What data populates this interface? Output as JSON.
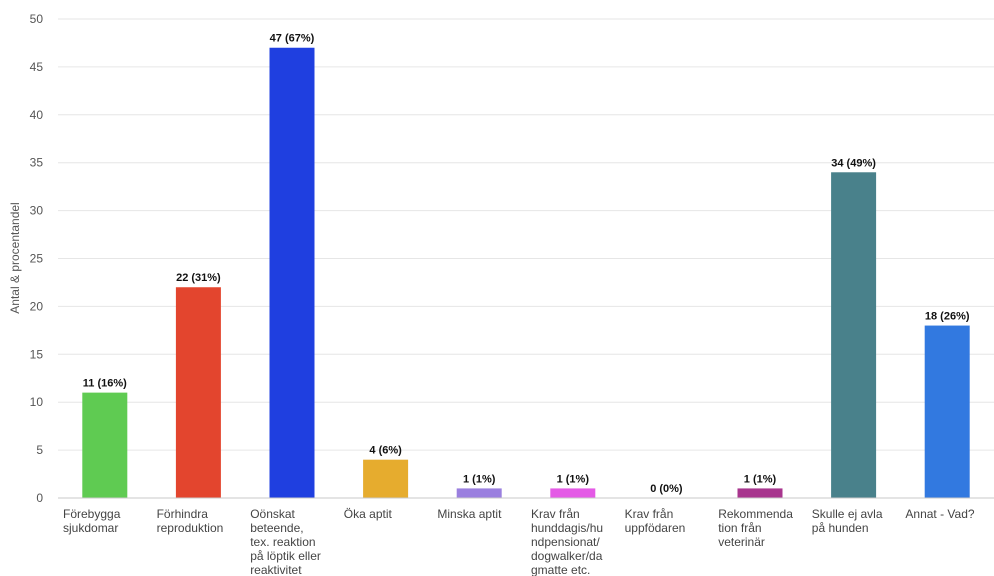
{
  "chart_data": {
    "type": "bar",
    "title": "",
    "xlabel": "",
    "ylabel": "Antal & procentandel",
    "ylim": [
      0,
      50
    ],
    "yticks": [
      0,
      5,
      10,
      15,
      20,
      25,
      30,
      35,
      40,
      45,
      50
    ],
    "grid": true,
    "categories": [
      [
        "Förebygga",
        "sjukdomar"
      ],
      [
        "Förhindra",
        "reproduktion"
      ],
      [
        "Oönskat",
        "beteende,",
        "tex. reaktion",
        "på löptik eller",
        "reaktivitet"
      ],
      [
        "Öka aptit"
      ],
      [
        "Minska aptit"
      ],
      [
        "Krav från",
        "hunddagis/hu",
        "ndpensionat/",
        "dogwalker/da",
        "gmatte etc."
      ],
      [
        "Krav från",
        "uppfödaren"
      ],
      [
        "Rekommenda",
        "tion från",
        "veterinär"
      ],
      [
        "Skulle ej avla",
        "på hunden"
      ],
      [
        "Annat - Vad?"
      ]
    ],
    "values": [
      11,
      22,
      47,
      4,
      1,
      1,
      0,
      1,
      34,
      18
    ],
    "data_labels": [
      "11 (16%)",
      "22 (31%)",
      "47 (67%)",
      "4 (6%)",
      "1 (1%)",
      "1 (1%)",
      "0 (0%)",
      "1 (1%)",
      "34 (49%)",
      "18 (26%)"
    ],
    "colors": [
      "#5fcb52",
      "#e3452e",
      "#1f3fe0",
      "#e6ac2e",
      "#9a7fdf",
      "#e45ae6",
      "#888888",
      "#a8358e",
      "#49818b",
      "#3279e0"
    ]
  }
}
